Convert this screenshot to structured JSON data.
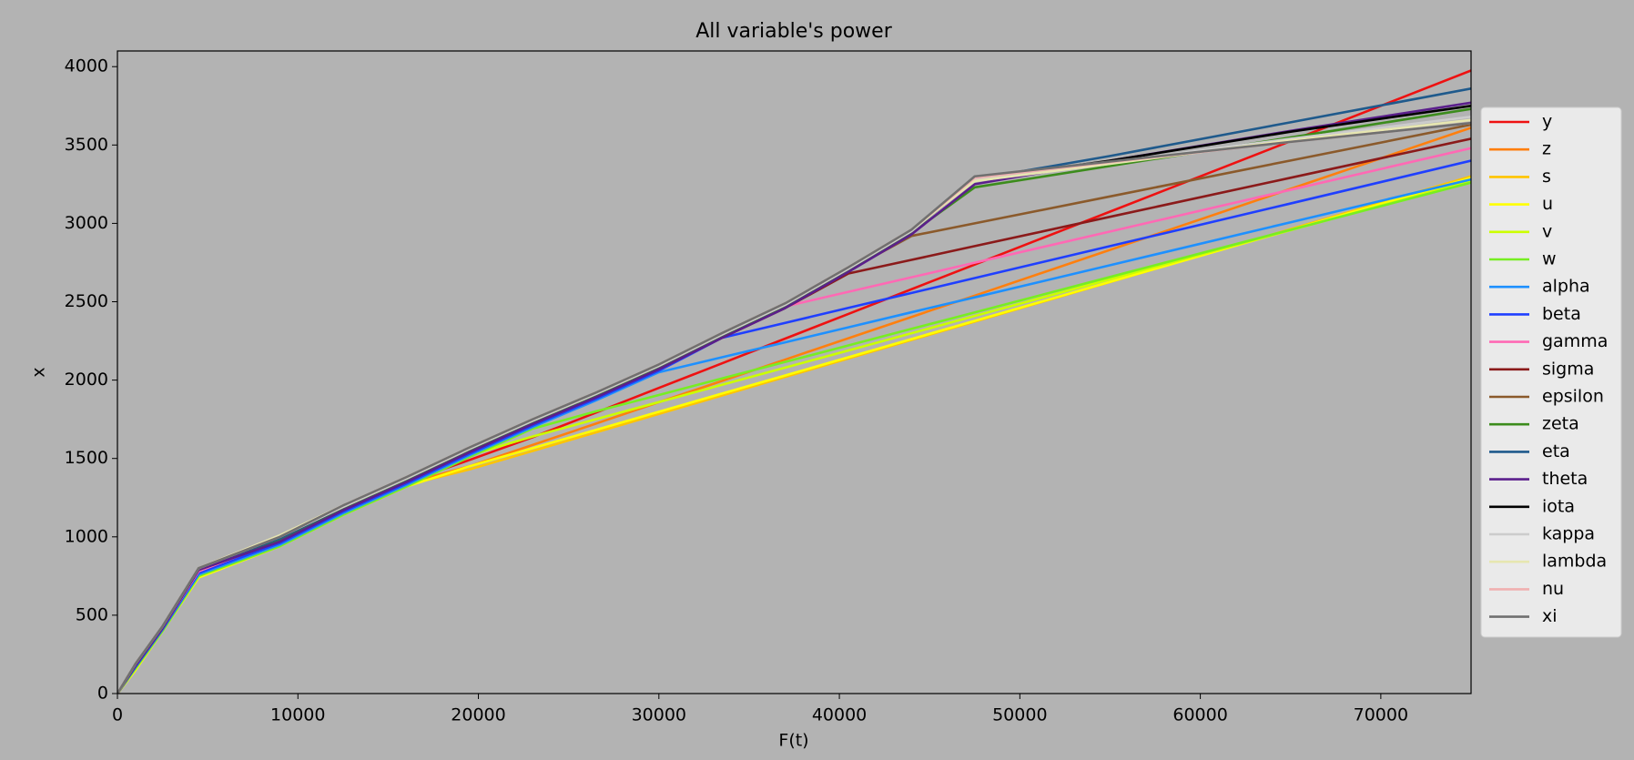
{
  "chart_data": {
    "type": "line",
    "title": "All variable's power",
    "xlabel": "F(t)",
    "ylabel": "x",
    "x": [
      0,
      1000,
      2500,
      4500,
      9000,
      12500,
      16000,
      19500,
      23000,
      26500,
      30000,
      33500,
      37000,
      40500,
      44000,
      47500,
      55000,
      65000,
      75000
    ],
    "xlim": [
      0,
      75000
    ],
    "xticks": [
      0,
      10000,
      20000,
      30000,
      40000,
      50000,
      60000,
      70000
    ],
    "ylim": [
      0,
      4100
    ],
    "yticks": [
      0,
      500,
      1000,
      1500,
      2000,
      2500,
      3000,
      3500,
      4000
    ],
    "grid": false,
    "legend": "right",
    "series": [
      {
        "name": "y",
        "color": "#ee1111",
        "values": [
          0,
          170,
          410,
          770,
          970,
          1170,
          1350,
          1490,
          1635,
          1792,
          1950,
          2107,
          2265,
          2422,
          2580,
          2737,
          3075,
          3525,
          3975
        ]
      },
      {
        "name": "z",
        "color": "#ff7f0e",
        "values": [
          0,
          170,
          410,
          760,
          960,
          1160,
          1340,
          1450,
          1586,
          1722,
          1859,
          1995,
          2131,
          2267,
          2403,
          2539,
          2831,
          3220,
          3610
        ]
      },
      {
        "name": "s",
        "color": "#ffc400",
        "values": [
          0,
          160,
          400,
          750,
          950,
          1150,
          1330,
          1430,
          1548,
          1666,
          1784,
          1902,
          2020,
          2138,
          2256,
          2373,
          2626,
          2963,
          3300
        ]
      },
      {
        "name": "u",
        "color": "#ffff00",
        "values": [
          0,
          150,
          400,
          740,
          940,
          1140,
          1320,
          1450,
          1566,
          1682,
          1798,
          1914,
          2030,
          2146,
          2262,
          2378,
          2627,
          2958,
          3290
        ]
      },
      {
        "name": "v",
        "color": "#ccff00",
        "values": [
          0,
          160,
          400,
          750,
          950,
          1150,
          1330,
          1520,
          1640,
          1750,
          1860,
          1970,
          2080,
          2189,
          2299,
          2409,
          2644,
          2957,
          3270
        ]
      },
      {
        "name": "w",
        "color": "#77ee22",
        "values": [
          0,
          160,
          400,
          750,
          940,
          1140,
          1320,
          1510,
          1690,
          1800,
          1905,
          2011,
          2116,
          2221,
          2327,
          2432,
          2658,
          2959,
          3260
        ]
      },
      {
        "name": "alpha",
        "color": "#1e90ff",
        "values": [
          0,
          170,
          410,
          760,
          950,
          1150,
          1330,
          1520,
          1700,
          1870,
          2050,
          2146,
          2241,
          2337,
          2433,
          2528,
          2733,
          3007,
          3280
        ]
      },
      {
        "name": "beta",
        "color": "#1f3fff",
        "values": [
          0,
          170,
          410,
          770,
          960,
          1160,
          1340,
          1530,
          1710,
          1880,
          2060,
          2270,
          2365,
          2461,
          2556,
          2651,
          2855,
          3127,
          3400
        ]
      },
      {
        "name": "gamma",
        "color": "#ff69b4",
        "values": [
          0,
          180,
          420,
          780,
          980,
          1180,
          1360,
          1550,
          1730,
          1900,
          2080,
          2280,
          2470,
          2563,
          2656,
          2749,
          2948,
          3214,
          3480
        ]
      },
      {
        "name": "sigma",
        "color": "#8b1a1a",
        "values": [
          0,
          180,
          420,
          790,
          970,
          1170,
          1350,
          1540,
          1720,
          1890,
          2070,
          2270,
          2460,
          2680,
          2767,
          2855,
          3042,
          3291,
          3540
        ]
      },
      {
        "name": "epsilon",
        "color": "#8b5a2b",
        "values": [
          0,
          180,
          420,
          790,
          980,
          1180,
          1360,
          1550,
          1730,
          1900,
          2080,
          2280,
          2470,
          2700,
          2920,
          3000,
          3172,
          3401,
          3630
        ]
      },
      {
        "name": "zeta",
        "color": "#3c8c1c",
        "values": [
          0,
          180,
          420,
          790,
          980,
          1180,
          1360,
          1550,
          1730,
          1900,
          2080,
          2280,
          2470,
          2700,
          2940,
          3230,
          3366,
          3548,
          3730
        ]
      },
      {
        "name": "eta",
        "color": "#1f5a8c",
        "values": [
          0,
          190,
          430,
          800,
          990,
          1190,
          1370,
          1560,
          1740,
          1910,
          2090,
          2290,
          2480,
          2710,
          2950,
          3280,
          3430,
          3645,
          3860
        ]
      },
      {
        "name": "theta",
        "color": "#5b1f8c",
        "values": [
          0,
          180,
          420,
          790,
          970,
          1170,
          1350,
          1540,
          1720,
          1890,
          2070,
          2270,
          2460,
          2690,
          2930,
          3250,
          3400,
          3590,
          3770
        ]
      },
      {
        "name": "iota",
        "color": "#000000",
        "values": [
          0,
          190,
          430,
          800,
          1000,
          1190,
          1370,
          1560,
          1740,
          1910,
          2090,
          2290,
          2480,
          2710,
          2950,
          3280,
          3400,
          3585,
          3750
        ]
      },
      {
        "name": "kappa",
        "color": "#cccccc",
        "values": [
          0,
          190,
          430,
          800,
          1000,
          1190,
          1370,
          1560,
          1740,
          1910,
          2090,
          2290,
          2480,
          2710,
          2950,
          3280,
          3390,
          3540,
          3680
        ]
      },
      {
        "name": "lambda",
        "color": "#e6e6b0",
        "values": [
          0,
          190,
          430,
          800,
          1010,
          1200,
          1380,
          1570,
          1750,
          1920,
          2100,
          2300,
          2490,
          2720,
          2960,
          3270,
          3380,
          3530,
          3660
        ]
      },
      {
        "name": "nu",
        "color": "#f0b0b0",
        "values": [
          0,
          190,
          430,
          800,
          1000,
          1200,
          1380,
          1570,
          1750,
          1920,
          2100,
          2300,
          2490,
          2720,
          2960,
          3290,
          3390,
          3520,
          3640
        ]
      },
      {
        "name": "xi",
        "color": "#707070",
        "values": [
          0,
          190,
          430,
          800,
          1000,
          1200,
          1380,
          1570,
          1750,
          1920,
          2100,
          2300,
          2490,
          2720,
          2960,
          3300,
          3395,
          3520,
          3640
        ]
      }
    ]
  }
}
